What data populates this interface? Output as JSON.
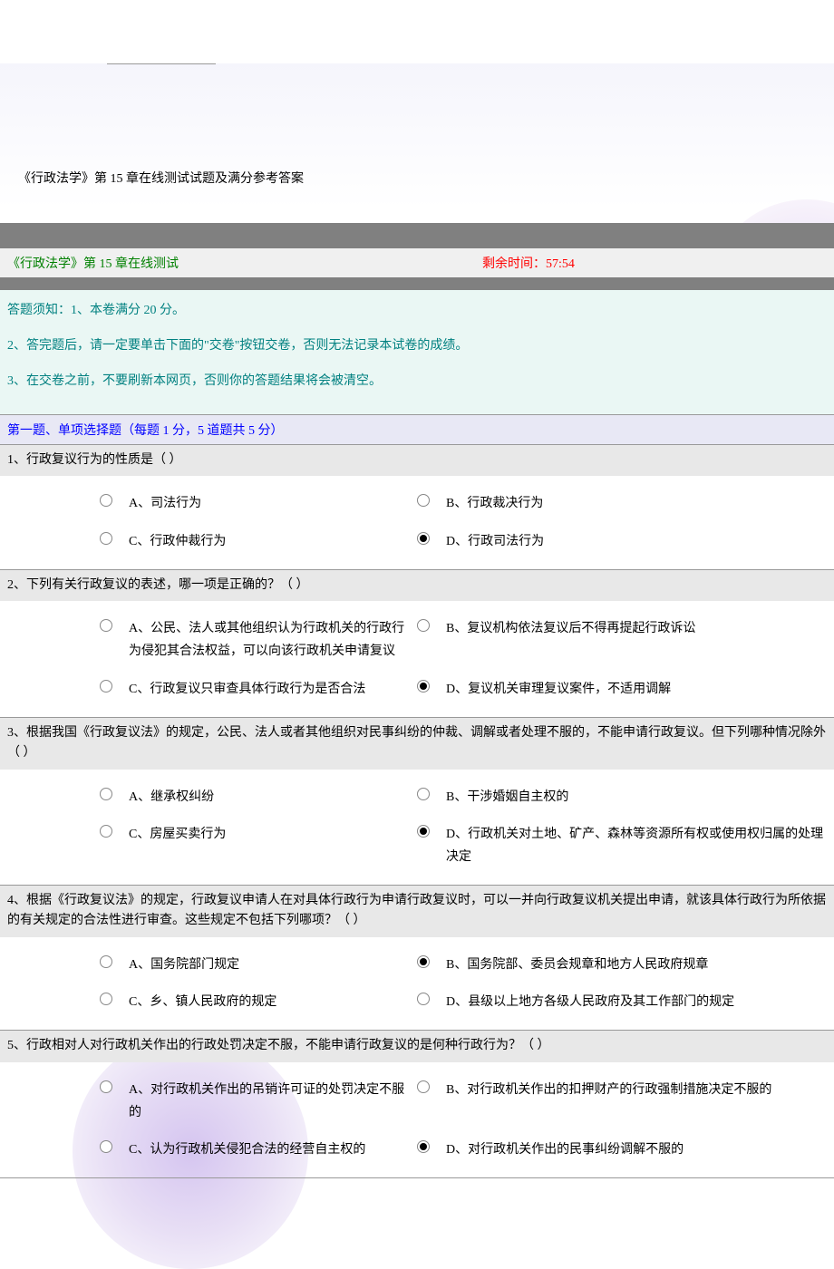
{
  "page_title": "《行政法学》第 15 章在线测试试题及满分参考答案",
  "header": {
    "left": "《行政法学》第 15 章在线测试",
    "right": "剩余时间：57:54"
  },
  "instructions": [
    "答题须知：1、本卷满分 20 分。",
    "2、答完题后，请一定要单击下面的\"交卷\"按钮交卷，否则无法记录本试卷的成绩。",
    "3、在交卷之前，不要刷新本网页，否则你的答题结果将会被清空。"
  ],
  "section_header": "第一题、单项选择题（每题 1 分，5 道题共 5 分）",
  "questions": [
    {
      "text": "1、行政复议行为的性质是（ ）",
      "options": [
        {
          "label": "A、司法行为",
          "selected": false
        },
        {
          "label": "B、行政裁决行为",
          "selected": false
        },
        {
          "label": "C、行政仲裁行为",
          "selected": false
        },
        {
          "label": "D、行政司法行为",
          "selected": true
        }
      ]
    },
    {
      "text": "2、下列有关行政复议的表述，哪一项是正确的？（ ）",
      "options": [
        {
          "label": "A、公民、法人或其他组织认为行政机关的行政行为侵犯其合法权益，可以向该行政机关申请复议",
          "selected": false
        },
        {
          "label": "B、复议机构依法复议后不得再提起行政诉讼",
          "selected": false
        },
        {
          "label": "C、行政复议只审查具体行政行为是否合法",
          "selected": false
        },
        {
          "label": "D、复议机关审理复议案件，不适用调解",
          "selected": true
        }
      ]
    },
    {
      "text": "3、根据我国《行政复议法》的规定，公民、法人或者其他组织对民事纠纷的仲裁、调解或者处理不服的，不能申请行政复议。但下列哪种情况除外（ ）",
      "options": [
        {
          "label": "A、继承权纠纷",
          "selected": false
        },
        {
          "label": "B、干涉婚姻自主权的",
          "selected": false
        },
        {
          "label": "C、房屋买卖行为",
          "selected": false
        },
        {
          "label": "D、行政机关对土地、矿产、森林等资源所有权或使用权归属的处理决定",
          "selected": true
        }
      ]
    },
    {
      "text": "4、根据《行政复议法》的规定，行政复议申请人在对具体行政行为申请行政复议时，可以一并向行政复议机关提出申请，就该具体行政行为所依据的有关规定的合法性进行审查。这些规定不包括下列哪项？（ ）",
      "options": [
        {
          "label": "A、国务院部门规定",
          "selected": false
        },
        {
          "label": "B、国务院部、委员会规章和地方人民政府规章",
          "selected": true
        },
        {
          "label": "C、乡、镇人民政府的规定",
          "selected": false
        },
        {
          "label": "D、县级以上地方各级人民政府及其工作部门的规定",
          "selected": false
        }
      ]
    },
    {
      "text": "5、行政相对人对行政机关作出的行政处罚决定不服，不能申请行政复议的是何种行政行为？（ ）",
      "options": [
        {
          "label": "A、对行政机关作出的吊销许可证的处罚决定不服的",
          "selected": false
        },
        {
          "label": "B、对行政机关作出的扣押财产的行政强制措施决定不服的",
          "selected": false
        },
        {
          "label": "C、认为行政机关侵犯合法的经营自主权的",
          "selected": false
        },
        {
          "label": "D、对行政机关作出的民事纠纷调解不服的",
          "selected": true
        }
      ]
    }
  ],
  "colors": {
    "green": "#008000",
    "red": "#ff0000",
    "teal": "#008080",
    "blue": "#0000ff",
    "gray_bar": "#808080",
    "q_bg": "#e8e8e8",
    "section_bg": "#e8e8f5",
    "instr_bg": "#eaf7f4"
  }
}
